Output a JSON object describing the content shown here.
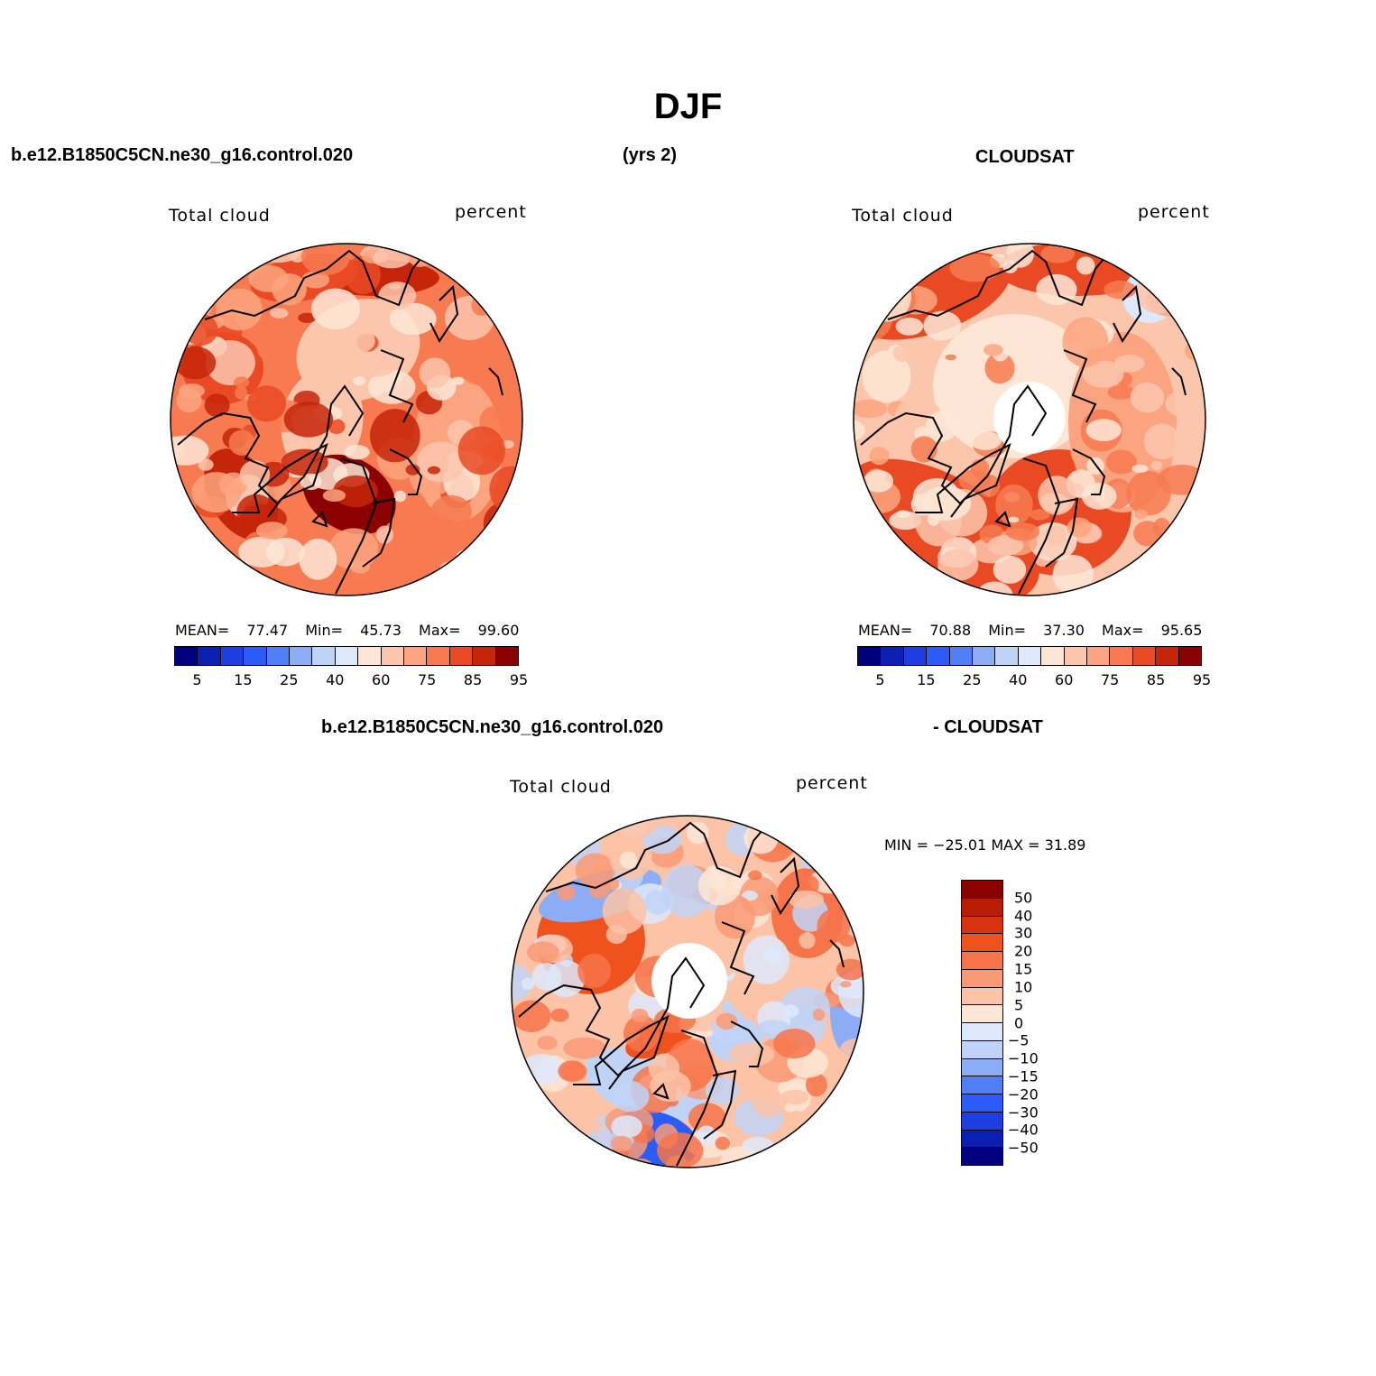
{
  "title": "DJF",
  "header": {
    "case_name": "b.e12.B1850C5CN.ne30_g16.control.020",
    "years": "(yrs 2)",
    "obs_name": "CLOUDSAT",
    "diff_case": "b.e12.B1850C5CN.ne30_g16.control.020",
    "diff_obs": "- CLOUDSAT"
  },
  "colors": {
    "abs_scale": [
      "#00007f",
      "#0b1fb3",
      "#1d3ee0",
      "#2b5cf7",
      "#4f7ff5",
      "#8cacf5",
      "#bfd3f7",
      "#dde9fb",
      "#fde6d6",
      "#fcc6ad",
      "#fba47f",
      "#f77a50",
      "#e94a23",
      "#c52508",
      "#8b0000"
    ],
    "diff_scale": [
      "#8b0000",
      "#b81d04",
      "#d8330f",
      "#f0521e",
      "#f7744a",
      "#f99a76",
      "#fcc3a7",
      "#fde6d6",
      "#dde9fb",
      "#bfd3f7",
      "#8cacf5",
      "#4f7ff5",
      "#2b5cf7",
      "#1d3ee0",
      "#0b1fb3",
      "#00007f"
    ]
  },
  "chart_data": [
    {
      "type": "heatmap",
      "panel": "model",
      "variable_label": "Total cloud",
      "units": "percent",
      "stats": {
        "mean_label": "MEAN=",
        "mean": "77.47",
        "min_label": "Min=",
        "min": "45.73",
        "max_label": "Max=",
        "max": "99.60"
      },
      "levels": [
        5,
        10,
        15,
        20,
        25,
        30,
        40,
        50,
        60,
        70,
        75,
        80,
        85,
        90,
        95
      ],
      "tick_labels": [
        "5",
        "15",
        "25",
        "40",
        "60",
        "75",
        "85",
        "95"
      ]
    },
    {
      "type": "heatmap",
      "panel": "obs",
      "variable_label": "Total cloud",
      "units": "percent",
      "stats": {
        "mean_label": "MEAN=",
        "mean": "70.88",
        "min_label": "Min=",
        "min": "37.30",
        "max_label": "Max=",
        "max": "95.65"
      },
      "levels": [
        5,
        10,
        15,
        20,
        25,
        30,
        40,
        50,
        60,
        70,
        75,
        80,
        85,
        90,
        95
      ],
      "tick_labels": [
        "5",
        "15",
        "25",
        "40",
        "60",
        "75",
        "85",
        "95"
      ]
    },
    {
      "type": "heatmap",
      "panel": "difference",
      "variable_label": "Total cloud",
      "units": "percent",
      "stats_text": "MIN = −25.01 MAX =   31.89",
      "levels": [
        50,
        40,
        30,
        20,
        15,
        10,
        5,
        0,
        -5,
        -10,
        -15,
        -20,
        -30,
        -40,
        -50
      ],
      "tick_labels": [
        "50",
        "40",
        "30",
        "20",
        "15",
        "10",
        "5",
        "0",
        "−5",
        "−10",
        "−15",
        "−20",
        "−30",
        "−40",
        "−50"
      ]
    }
  ]
}
